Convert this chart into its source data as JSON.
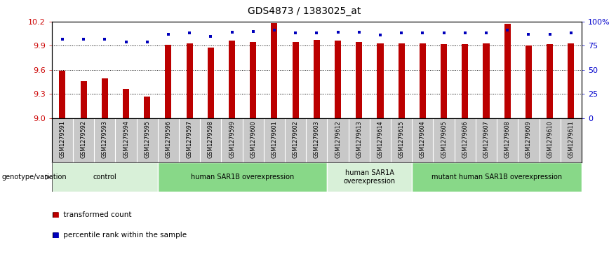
{
  "title": "GDS4873 / 1383025_at",
  "samples": [
    "GSM1279591",
    "GSM1279592",
    "GSM1279593",
    "GSM1279594",
    "GSM1279595",
    "GSM1279596",
    "GSM1279597",
    "GSM1279598",
    "GSM1279599",
    "GSM1279600",
    "GSM1279601",
    "GSM1279602",
    "GSM1279603",
    "GSM1279612",
    "GSM1279613",
    "GSM1279614",
    "GSM1279615",
    "GSM1279604",
    "GSM1279605",
    "GSM1279606",
    "GSM1279607",
    "GSM1279608",
    "GSM1279609",
    "GSM1279610",
    "GSM1279611"
  ],
  "red_values": [
    9.59,
    9.46,
    9.49,
    9.36,
    9.27,
    9.91,
    9.93,
    9.88,
    9.96,
    9.95,
    10.18,
    9.95,
    9.97,
    9.96,
    9.95,
    9.93,
    9.93,
    9.93,
    9.92,
    9.92,
    9.93,
    10.17,
    9.9,
    9.92,
    9.93
  ],
  "blue_values": [
    82,
    82,
    82,
    79,
    79,
    87,
    88,
    85,
    89,
    90,
    91,
    88,
    88,
    89,
    89,
    86,
    88,
    88,
    88,
    88,
    88,
    91,
    87,
    87,
    88
  ],
  "y_min": 9.0,
  "y_max": 10.2,
  "y_ticks_left": [
    9.0,
    9.3,
    9.6,
    9.9,
    10.2
  ],
  "y_ticks_right": [
    0,
    25,
    50,
    75,
    100
  ],
  "y_ticks_right_labels": [
    "0",
    "25",
    "50",
    "75",
    "100%"
  ],
  "groups": [
    {
      "label": "control",
      "start": 0,
      "end": 5,
      "color": "#d8f0d8"
    },
    {
      "label": "human SAR1B overexpression",
      "start": 5,
      "end": 13,
      "color": "#88d888"
    },
    {
      "label": "human SAR1A\noverexpression",
      "start": 13,
      "end": 17,
      "color": "#d8f0d8"
    },
    {
      "label": "mutant human SAR1B overexpression",
      "start": 17,
      "end": 25,
      "color": "#88d888"
    }
  ],
  "bar_color": "#bb0000",
  "dot_color": "#0000bb",
  "bg_color": "#ffffff",
  "label_band_color": "#c8c8c8",
  "label_band_border": "#ffffff",
  "genotype_label": "genotype/variation",
  "legend_red": "transformed count",
  "legend_blue": "percentile rank within the sample",
  "left_tick_color": "#cc0000",
  "right_tick_color": "#0000cc",
  "title_fontsize": 10,
  "bar_width": 0.3
}
